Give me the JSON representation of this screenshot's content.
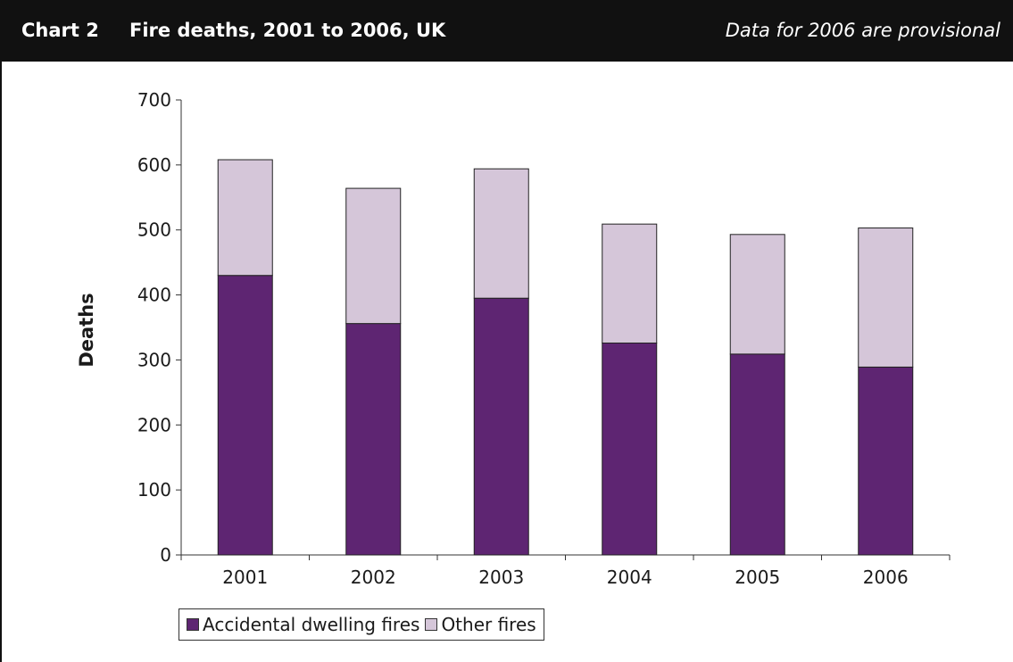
{
  "header": {
    "label": "Chart 2",
    "title": "Fire deaths, 2001 to 2006, UK",
    "note": "Data for 2006 are provisional"
  },
  "colors": {
    "header_bg": "#111111",
    "accidental": "#5e2572",
    "other": "#d5c6d9"
  },
  "chart_data": {
    "type": "bar",
    "stacked": true,
    "categories": [
      "2001",
      "2002",
      "2003",
      "2004",
      "2005",
      "2006"
    ],
    "series": [
      {
        "name": "Accidental dwelling fires",
        "values": [
          430,
          356,
          395,
          326,
          309,
          289
        ]
      },
      {
        "name": "Other fires",
        "values": [
          178,
          208,
          199,
          183,
          184,
          214
        ]
      }
    ],
    "totals": [
      608,
      564,
      594,
      509,
      493,
      503
    ],
    "ylabel": "Deaths",
    "xlabel": "",
    "ylim": [
      0,
      700
    ],
    "yticks": [
      0,
      100,
      200,
      300,
      400,
      500,
      600,
      700
    ],
    "grid": false,
    "legend_position": "bottom-left"
  }
}
